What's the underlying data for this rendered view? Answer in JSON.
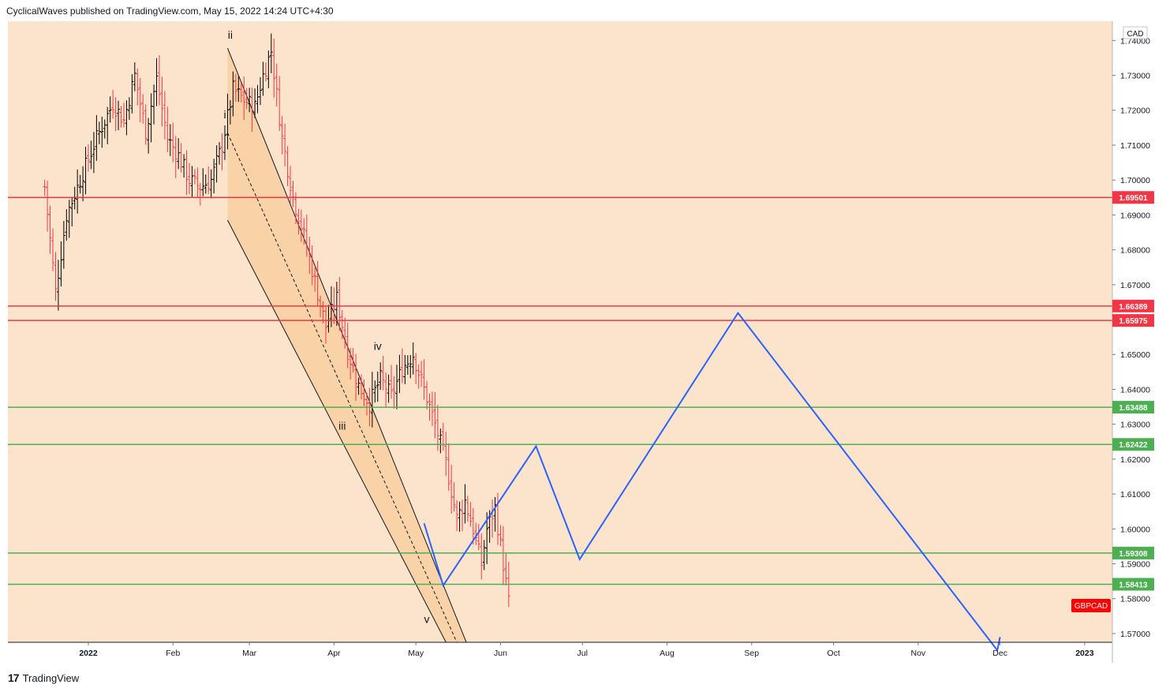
{
  "header": {
    "publisher_line": "CyclicalWaves published on TradingView.com, May 15, 2022 14:24 UTC+4:30"
  },
  "footer": {
    "brand": "TradingView",
    "logo_glyph": "17"
  },
  "colors": {
    "background": "#fbe4cb",
    "channel_fill": "#f8cd9b",
    "resistance": "#f23645",
    "support": "#4caf50",
    "projection": "#2962ff",
    "bull_bar": "#000000",
    "bear_bar": "#f23645",
    "ticker_bg": "#ff0000"
  },
  "chart_data": {
    "type": "ohlc",
    "symbol_label": "GBPCAD",
    "currency": "CAD",
    "ylim": [
      1.5675,
      1.7455
    ],
    "y_ticks": [
      "1.74000",
      "1.73000",
      "1.72000",
      "1.71000",
      "1.70000",
      "1.69000",
      "1.68000",
      "1.67000",
      "1.66000",
      "1.65000",
      "1.64000",
      "1.63000",
      "1.62000",
      "1.61000",
      "1.60000",
      "1.59000",
      "1.58000",
      "1.57000"
    ],
    "x_ticks": [
      {
        "label": "2022",
        "date": "2022-01-01"
      },
      {
        "label": "Feb",
        "date": "2022-02-01"
      },
      {
        "label": "Mar",
        "date": "2022-03-01"
      },
      {
        "label": "Apr",
        "date": "2022-04-01"
      },
      {
        "label": "May",
        "date": "2022-05-01"
      },
      {
        "label": "Jun",
        "date": "2022-06-01"
      },
      {
        "label": "Jul",
        "date": "2022-07-01"
      },
      {
        "label": "Aug",
        "date": "2022-08-01"
      },
      {
        "label": "Sep",
        "date": "2022-09-01"
      },
      {
        "label": "Oct",
        "date": "2022-10-01"
      },
      {
        "label": "Nov",
        "date": "2022-11-01"
      },
      {
        "label": "Dec",
        "date": "2022-12-01"
      },
      {
        "label": "2023",
        "date": "2023-01-01"
      }
    ],
    "price_path": [
      [
        "2021-12-16",
        1.698
      ],
      [
        "2021-12-20",
        1.668
      ],
      [
        "2021-12-24",
        1.69
      ],
      [
        "2021-12-29",
        1.7
      ],
      [
        "2022-01-04",
        1.712
      ],
      [
        "2022-01-10",
        1.722
      ],
      [
        "2022-01-14",
        1.717
      ],
      [
        "2022-01-18",
        1.73
      ],
      [
        "2022-01-22",
        1.714
      ],
      [
        "2022-01-26",
        1.729
      ],
      [
        "2022-01-30",
        1.712
      ],
      [
        "2022-02-03",
        1.707
      ],
      [
        "2022-02-07",
        1.7
      ],
      [
        "2022-02-11",
        1.698
      ],
      [
        "2022-02-15",
        1.7
      ],
      [
        "2022-02-19",
        1.71
      ],
      [
        "2022-02-23",
        1.726
      ],
      [
        "2022-02-27",
        1.723
      ],
      [
        "2022-03-03",
        1.721
      ],
      [
        "2022-03-06",
        1.73
      ],
      [
        "2022-03-09",
        1.737
      ],
      [
        "2022-03-13",
        1.712
      ],
      [
        "2022-03-17",
        1.695
      ],
      [
        "2022-03-21",
        1.684
      ],
      [
        "2022-03-25",
        1.671
      ],
      [
        "2022-03-29",
        1.658
      ],
      [
        "2022-04-02",
        1.666
      ],
      [
        "2022-04-06",
        1.651
      ],
      [
        "2022-04-10",
        1.641
      ],
      [
        "2022-04-14",
        1.636
      ],
      [
        "2022-04-18",
        1.643
      ],
      [
        "2022-04-22",
        1.638
      ],
      [
        "2022-04-26",
        1.646
      ],
      [
        "2022-04-30",
        1.65
      ],
      [
        "2022-05-04",
        1.64
      ],
      [
        "2022-05-08",
        1.63
      ],
      [
        "2022-05-12",
        1.619
      ],
      [
        "2022-05-16",
        1.603
      ],
      [
        "2022-05-19",
        1.608
      ],
      [
        "2022-05-22",
        1.6
      ],
      [
        "2022-05-25",
        1.59
      ],
      [
        "2022-05-27",
        1.6
      ],
      [
        "2022-05-30",
        1.606
      ],
      [
        "2022-06-02",
        1.59
      ],
      [
        "2022-06-04",
        1.579
      ]
    ],
    "horizontal_levels": [
      {
        "value": 1.69501,
        "label": "1.69501",
        "kind": "resistance"
      },
      {
        "value": 1.66389,
        "label": "1.66389",
        "kind": "resistance"
      },
      {
        "value": 1.65975,
        "label": "1.65975",
        "kind": "resistance"
      },
      {
        "value": 1.63488,
        "label": "1.63488",
        "kind": "support"
      },
      {
        "value": 1.62422,
        "label": "1.62422",
        "kind": "support"
      },
      {
        "value": 1.59308,
        "label": "1.59308",
        "kind": "support"
      },
      {
        "value": 1.58413,
        "label": "1.58413",
        "kind": "support"
      }
    ],
    "channel": {
      "upper": [
        [
          "2022-02-21",
          1.7378
        ],
        [
          "2022-05-21",
          1.5645
        ]
      ],
      "lower": [
        [
          "2022-02-21",
          1.6885
        ],
        [
          "2022-05-14",
          1.5645
        ]
      ],
      "midline": [
        [
          "2022-02-21",
          1.7135
        ],
        [
          "2022-05-16",
          1.5675
        ]
      ],
      "fill_start": "2022-02-21"
    },
    "wave_labels": [
      {
        "text": "ii",
        "date": "2022-02-22",
        "value": 1.7405
      },
      {
        "text": "i",
        "date": "2022-02-20",
        "value": 1.7177
      },
      {
        "text": "iii",
        "date": "2022-04-04",
        "value": 1.6285
      },
      {
        "text": "iv",
        "date": "2022-04-17",
        "value": 1.6513
      },
      {
        "text": "v",
        "date": "2022-05-05",
        "value": 1.573
      }
    ],
    "projection_path": [
      [
        "2022-05-04",
        1.6016
      ],
      [
        "2022-05-11",
        1.5838
      ],
      [
        "2022-06-14",
        1.6237
      ],
      [
        "2022-06-30",
        1.5913
      ],
      [
        "2022-08-27",
        1.6619
      ],
      [
        "2022-11-30",
        1.5652
      ],
      [
        "2022-12-01",
        1.569
      ]
    ]
  }
}
